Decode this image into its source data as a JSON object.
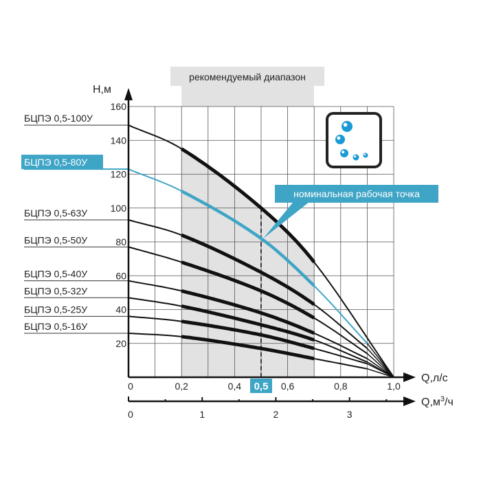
{
  "chart_data": {
    "type": "line",
    "xlabel": "Q,л/с",
    "x2label_main": "Q,м",
    "x2label_sup": "3",
    "x2label_tail": "/ч",
    "ylabel": "H,м",
    "xlim": [
      0,
      1.0
    ],
    "ylim": [
      0,
      160
    ],
    "grid": true,
    "x_ticks": [
      "0",
      "0,2",
      "0,4",
      "0,6",
      "0,8",
      "1,0"
    ],
    "x_ticks_values": [
      0,
      0.2,
      0.4,
      0.6,
      0.8,
      1.0
    ],
    "x_highlight_tick": "0,5",
    "x2_ticks": [
      "0",
      "1",
      "2",
      "3"
    ],
    "x2_ticks_values": [
      0,
      1,
      2,
      3
    ],
    "y_ticks": [
      "20",
      "40",
      "60",
      "80",
      "100",
      "120",
      "140",
      "160"
    ],
    "y_ticks_values": [
      20,
      40,
      60,
      80,
      100,
      120,
      140,
      160
    ],
    "recommended_range": {
      "label": "рекомендуемый диапазон",
      "from": 0.2,
      "to": 0.7
    },
    "nominal_point": {
      "label": "номинальная рабочая точка",
      "q": 0.5
    },
    "series": [
      {
        "name": "БЦПЭ 0,5-100У",
        "color": "#111111",
        "x": [
          0,
          0.2,
          0.5,
          0.7,
          1.0
        ],
        "y": [
          149,
          135,
          100,
          68,
          0
        ]
      },
      {
        "name": "БЦПЭ 0,5-80У",
        "color": "#3fa5c6",
        "highlight": true,
        "x": [
          0,
          0.2,
          0.5,
          0.7,
          0.9
        ],
        "y": [
          123,
          110,
          82,
          54,
          20
        ]
      },
      {
        "name": "БЦПЭ 0,5-63У",
        "color": "#111111",
        "x": [
          0,
          0.2,
          0.5,
          0.7,
          0.9
        ],
        "y": [
          93,
          84,
          62,
          43,
          17
        ]
      },
      {
        "name": "БЦПЭ 0,5-50У",
        "color": "#111111",
        "x": [
          0,
          0.2,
          0.5,
          0.7,
          0.9
        ],
        "y": [
          77,
          68,
          51,
          35,
          14
        ]
      },
      {
        "name": "БЦПЭ 0,5-40У",
        "color": "#111111",
        "x": [
          0,
          0.2,
          0.5,
          0.7,
          0.9
        ],
        "y": [
          57,
          51,
          38,
          26,
          11
        ]
      },
      {
        "name": "БЦПЭ 0,5-32У",
        "color": "#111111",
        "x": [
          0,
          0.2,
          0.5,
          0.7,
          0.9
        ],
        "y": [
          47,
          42,
          31,
          22,
          9
        ]
      },
      {
        "name": "БЦПЭ 0,5-25У",
        "color": "#111111",
        "x": [
          0,
          0.2,
          0.5,
          0.7,
          0.9
        ],
        "y": [
          36,
          33,
          25,
          17,
          8
        ]
      },
      {
        "name": "БЦПЭ 0,5-16У",
        "color": "#111111",
        "x": [
          0,
          0.2,
          0.5,
          0.7,
          0.9
        ],
        "y": [
          26,
          24,
          17,
          11,
          5
        ]
      }
    ]
  },
  "colors": {
    "accent": "#3fa5c6",
    "range_fill": "#e2e2e2",
    "grid": "#555555"
  },
  "icon": "water-bubbles-icon"
}
